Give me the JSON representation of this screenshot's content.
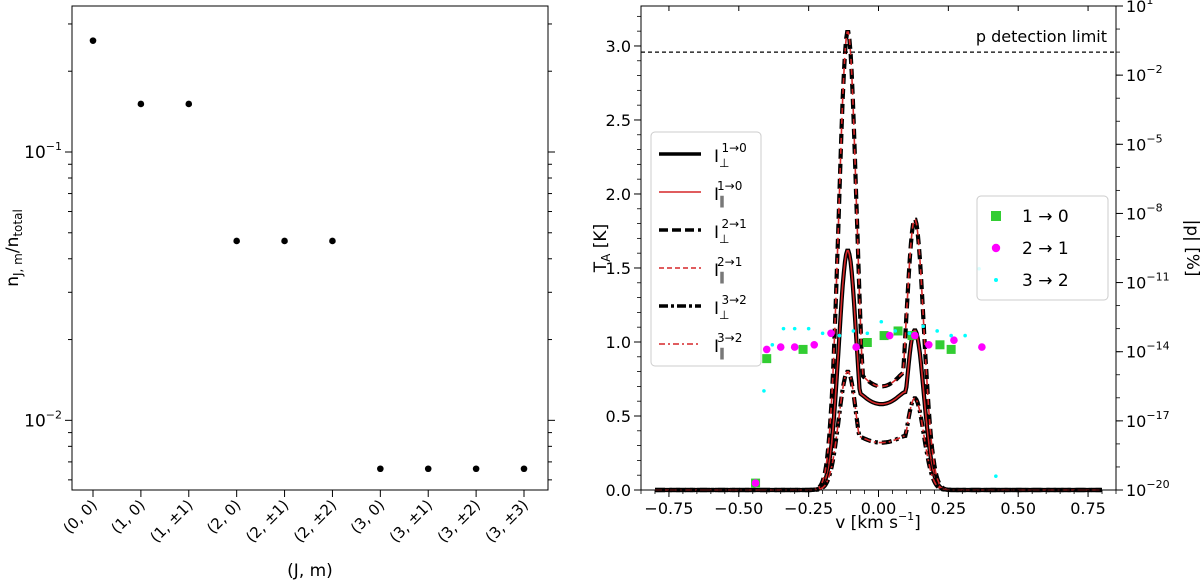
{
  "chart_data": [
    {
      "type": "scatter",
      "yscale": "log",
      "ylim": [
        0.0055,
        0.35
      ],
      "ylabel": {
        "base": "n",
        "sub": "J, m",
        "sep": "/n",
        "sub2": "total"
      },
      "xlabel": "(J, m)",
      "categories": [
        "(0, 0)",
        "(1, 0)",
        "(1, ±1)",
        "(2, 0)",
        "(2, ±1)",
        "(2, ±2)",
        "(3, 0)",
        "(3, ±1)",
        "(3, ±2)",
        "(3, ±3)"
      ],
      "values": [
        0.26,
        0.151,
        0.151,
        0.0466,
        0.0466,
        0.0466,
        0.0066,
        0.0066,
        0.0066,
        0.0066
      ],
      "yticks": [
        {
          "value": 0.1,
          "base": "10",
          "exp": "−1"
        },
        {
          "value": 0.01,
          "base": "10",
          "exp": "−2"
        }
      ],
      "marker_color": "#000000"
    },
    {
      "type": "line",
      "xlabel": {
        "main": "v [km s",
        "exp": "−1",
        "close": "]"
      },
      "ylabel_left": {
        "base": "T",
        "sub": "A",
        "rest": " [K]"
      },
      "ylabel_right": "|p| [%]",
      "xlim": [
        -0.85,
        0.85
      ],
      "ylim_left": [
        0,
        3.27
      ],
      "ylim_right_exp": [
        -20,
        1
      ],
      "yscale_right": "log",
      "xticks": [
        "−0.75",
        "−0.50",
        "−0.25",
        "0.00",
        "0.25",
        "0.50",
        "0.75"
      ],
      "xtick_values": [
        -0.75,
        -0.5,
        -0.25,
        0.0,
        0.25,
        0.5,
        0.75
      ],
      "yticks_left": [
        "0.0",
        "0.5",
        "1.0",
        "1.5",
        "2.0",
        "2.5",
        "3.0"
      ],
      "yticks_left_values": [
        0,
        0.5,
        1.0,
        1.5,
        2.0,
        2.5,
        3.0
      ],
      "yticks_right": [
        {
          "exp": "1"
        },
        {
          "exp": "−2"
        },
        {
          "exp": "−5"
        },
        {
          "exp": "−8"
        },
        {
          "exp": "−11"
        },
        {
          "exp": "−14"
        },
        {
          "exp": "−17"
        },
        {
          "exp": "−20"
        }
      ],
      "yticks_right_values": [
        1,
        -2,
        -5,
        -8,
        -11,
        -14,
        -17,
        -20
      ],
      "detection_limit": {
        "label": "p detection limit",
        "exp": -1
      },
      "legend_lines": {
        "placement": "center-left",
        "entries": [
          {
            "sym": "⊥",
            "trans": "1→0",
            "style": "solid-black"
          },
          {
            "sym": "∥",
            "trans": "1→0",
            "style": "solid-red"
          },
          {
            "sym": "⊥",
            "trans": "2→1",
            "style": "dashed-black"
          },
          {
            "sym": "∥",
            "trans": "2→1",
            "style": "dashed-red"
          },
          {
            "sym": "⊥",
            "trans": "3→2",
            "style": "dashdot-black"
          },
          {
            "sym": "∥",
            "trans": "3→2",
            "style": "dashdot-red"
          }
        ],
        "letter": "I"
      },
      "legend_points": {
        "placement": "center-right",
        "entries": [
          {
            "label": "1 → 0",
            "marker": "square",
            "color": "#32cd32"
          },
          {
            "label": "2 → 1",
            "marker": "circle",
            "color": "#ff00ff"
          },
          {
            "label": "3 → 2",
            "marker": "dot",
            "color": "#00ffff"
          }
        ]
      },
      "series": [
        {
          "transition": "1→0",
          "peak_left": 1.62,
          "peak_right": 1.08,
          "center_dip": 0.58,
          "v_left": -0.11,
          "v_right": 0.13
        },
        {
          "transition": "2→1",
          "peak_left": 3.1,
          "peak_right": 1.83,
          "center_dip": 0.7,
          "v_left": -0.11,
          "v_right": 0.13
        },
        {
          "transition": "3→2",
          "peak_left": 0.8,
          "peak_right": 0.62,
          "center_dip": 0.32,
          "v_left": -0.11,
          "v_right": 0.13
        }
      ],
      "polarization_points": {
        "1→0": {
          "x": [
            -0.44,
            -0.4,
            -0.27,
            -0.04,
            0.02,
            0.07,
            0.12,
            0.22,
            0.26
          ],
          "exp": [
            -19.7,
            -14.3,
            -13.9,
            -13.6,
            -13.3,
            -13.1,
            -13.3,
            -13.7,
            -13.9
          ]
        },
        "2→1": {
          "x": [
            -0.44,
            -0.4,
            -0.35,
            -0.3,
            -0.23,
            -0.17,
            -0.08,
            0.04,
            0.13,
            0.18,
            0.27,
            0.37
          ],
          "exp": [
            -19.7,
            -13.9,
            -13.8,
            -13.8,
            -13.7,
            -13.2,
            -13.8,
            -13.3,
            -13.3,
            -13.7,
            -13.5,
            -13.8
          ]
        },
        "3→2": {
          "x": [
            -0.41,
            -0.38,
            -0.34,
            -0.3,
            -0.25,
            -0.2,
            -0.14,
            -0.09,
            -0.04,
            0.01,
            0.06,
            0.11,
            0.16,
            0.21,
            0.26,
            0.31,
            0.36,
            0.42
          ],
          "exp": [
            -15.7,
            -13.7,
            -13.0,
            -13.0,
            -13.0,
            -13.2,
            -13.3,
            -13.1,
            -13.2,
            -12.7,
            -13.1,
            -13.2,
            -12.9,
            -13.1,
            -13.3,
            -13.3,
            -10.4,
            -19.4
          ]
        }
      }
    }
  ]
}
